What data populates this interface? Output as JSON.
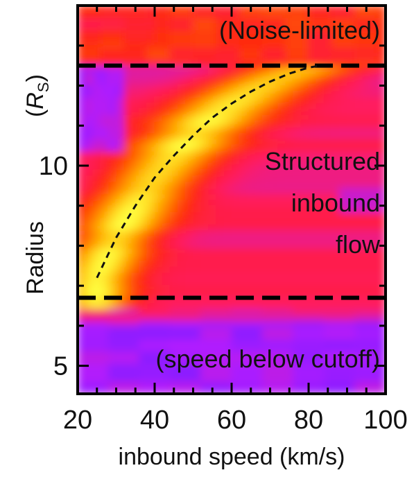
{
  "chart_data": {
    "type": "heatmap",
    "title": "",
    "xlabel": "inbound speed (km/s)",
    "ylabel_main": "Radius",
    "ylabel_unit_open": "(",
    "ylabel_unit_R": "R",
    "ylabel_unit_sub": "S",
    "ylabel_unit_close": ")",
    "xlim": [
      20,
      100
    ],
    "ylim": [
      4.3,
      14.0
    ],
    "x_ticks": [
      20,
      40,
      60,
      80,
      100
    ],
    "y_ticks": [
      5,
      10
    ],
    "x_tick_labels": [
      "20",
      "40",
      "60",
      "80",
      "100"
    ],
    "y_tick_labels": [
      "5",
      "10"
    ],
    "boundaries_radius": [
      12.5,
      6.7
    ],
    "annotations": {
      "top": "(Noise-limited)",
      "middle": [
        "Structured",
        "inbound",
        "flow"
      ],
      "bottom": "(speed below cutoff)"
    },
    "fit_curve": {
      "x": [
        25,
        30,
        35,
        40,
        45,
        50,
        55,
        60,
        65,
        70,
        75,
        80,
        83
      ],
      "y": [
        7.2,
        8.2,
        9.0,
        9.7,
        10.25,
        10.75,
        11.2,
        11.55,
        11.85,
        12.1,
        12.3,
        12.45,
        12.5
      ]
    },
    "colormap": [
      "#6a1cff",
      "#b01cff",
      "#ff1a60",
      "#ff2a10",
      "#ff6a00",
      "#ffb000",
      "#ffff40"
    ]
  }
}
